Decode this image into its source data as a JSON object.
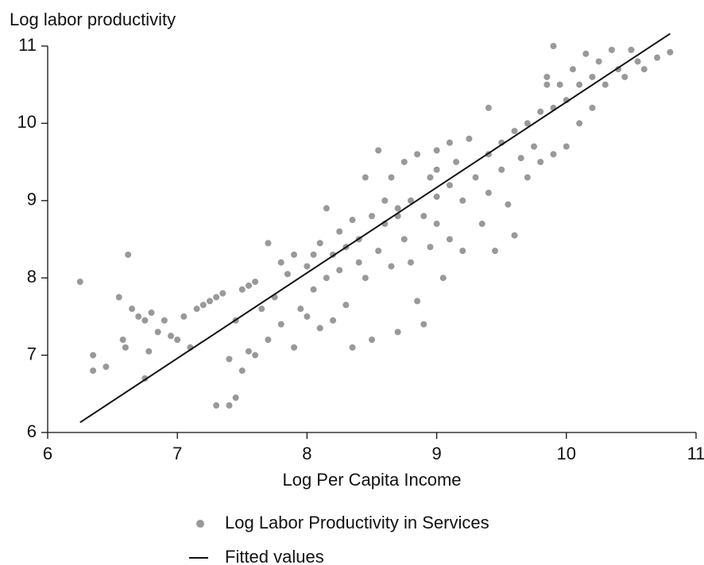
{
  "chart_data": {
    "type": "scatter",
    "ylabel": "Log labor productivity",
    "xlabel": "Log Per Capita Income",
    "xlim": [
      6,
      11
    ],
    "ylim": [
      6,
      11
    ],
    "xticks": [
      6,
      7,
      8,
      9,
      10,
      11
    ],
    "yticks": [
      6,
      7,
      8,
      9,
      10,
      11
    ],
    "grid": false,
    "legend": "bottom",
    "series": [
      {
        "name": "Log Labor Productivity in Services",
        "color": "#999999",
        "type": "scatter",
        "x": [
          6.25,
          6.35,
          6.35,
          6.45,
          6.55,
          6.58,
          6.6,
          6.62,
          6.65,
          6.7,
          6.75,
          6.75,
          6.78,
          6.8,
          6.85,
          6.9,
          6.95,
          7.0,
          7.05,
          7.1,
          7.15,
          7.2,
          7.25,
          7.3,
          7.35,
          7.3,
          7.4,
          7.45,
          7.4,
          7.45,
          7.5,
          7.55,
          7.5,
          7.55,
          7.6,
          7.6,
          7.65,
          7.7,
          7.7,
          7.75,
          7.8,
          7.8,
          7.85,
          7.9,
          7.9,
          7.95,
          8.0,
          8.0,
          8.05,
          8.05,
          8.1,
          8.1,
          8.15,
          8.15,
          8.2,
          8.2,
          8.25,
          8.25,
          8.3,
          8.3,
          8.35,
          8.35,
          8.4,
          8.4,
          8.45,
          8.45,
          8.5,
          8.5,
          8.55,
          8.55,
          8.6,
          8.6,
          8.65,
          8.65,
          8.7,
          8.7,
          8.75,
          8.75,
          8.8,
          8.8,
          8.85,
          8.85,
          8.9,
          8.9,
          8.95,
          8.95,
          9.0,
          9.0,
          9.0,
          9.05,
          9.1,
          9.1,
          9.1,
          9.15,
          9.2,
          9.2,
          9.25,
          9.3,
          9.35,
          9.4,
          9.4,
          9.45,
          9.5,
          9.5,
          9.55,
          9.6,
          9.6,
          9.65,
          9.7,
          9.7,
          9.75,
          9.8,
          9.8,
          9.85,
          9.9,
          9.9,
          9.95,
          10.0,
          10.0,
          10.05,
          10.1,
          10.1,
          10.15,
          10.2,
          10.2,
          10.25,
          10.3,
          10.35,
          10.4,
          10.45,
          10.5,
          10.55,
          10.6,
          10.7,
          10.8,
          9.9,
          9.85,
          9.4,
          9.0,
          8.7
        ],
        "values": [
          7.95,
          7.0,
          6.8,
          6.85,
          7.75,
          7.2,
          7.1,
          8.3,
          7.6,
          7.5,
          7.45,
          6.7,
          7.05,
          7.55,
          7.3,
          7.45,
          7.25,
          7.2,
          7.5,
          7.1,
          7.6,
          7.65,
          7.7,
          7.75,
          7.8,
          6.35,
          6.35,
          6.45,
          6.95,
          7.45,
          7.85,
          7.9,
          6.8,
          7.05,
          7.0,
          7.95,
          7.6,
          8.45,
          7.2,
          7.75,
          8.2,
          7.4,
          8.05,
          8.3,
          7.1,
          7.6,
          8.15,
          7.5,
          8.3,
          7.85,
          8.45,
          7.35,
          8.0,
          8.9,
          8.3,
          7.45,
          8.6,
          8.1,
          8.4,
          7.65,
          8.75,
          7.1,
          8.5,
          8.2,
          9.3,
          8.0,
          8.8,
          7.2,
          9.65,
          8.35,
          9.0,
          8.7,
          9.3,
          8.15,
          8.8,
          7.3,
          9.5,
          8.5,
          9.0,
          8.2,
          9.6,
          7.7,
          8.8,
          7.4,
          9.3,
          8.4,
          9.65,
          9.05,
          8.7,
          8.0,
          9.75,
          9.2,
          8.5,
          9.5,
          9.0,
          8.35,
          9.8,
          9.3,
          8.7,
          9.6,
          9.1,
          8.35,
          9.75,
          9.4,
          8.95,
          9.9,
          8.55,
          9.55,
          10.0,
          9.3,
          9.7,
          10.15,
          9.5,
          10.6,
          10.2,
          9.6,
          10.5,
          10.3,
          9.7,
          10.7,
          10.5,
          10.0,
          10.9,
          10.6,
          10.2,
          10.8,
          10.5,
          10.95,
          10.7,
          10.6,
          10.95,
          10.8,
          10.7,
          10.85,
          10.92,
          11.0,
          10.5,
          10.2,
          9.4,
          8.9
        ]
      },
      {
        "name": "Fitted values",
        "color": "#111111",
        "type": "line",
        "x": [
          6.25,
          10.8
        ],
        "values": [
          6.13,
          11.16
        ]
      }
    ]
  }
}
